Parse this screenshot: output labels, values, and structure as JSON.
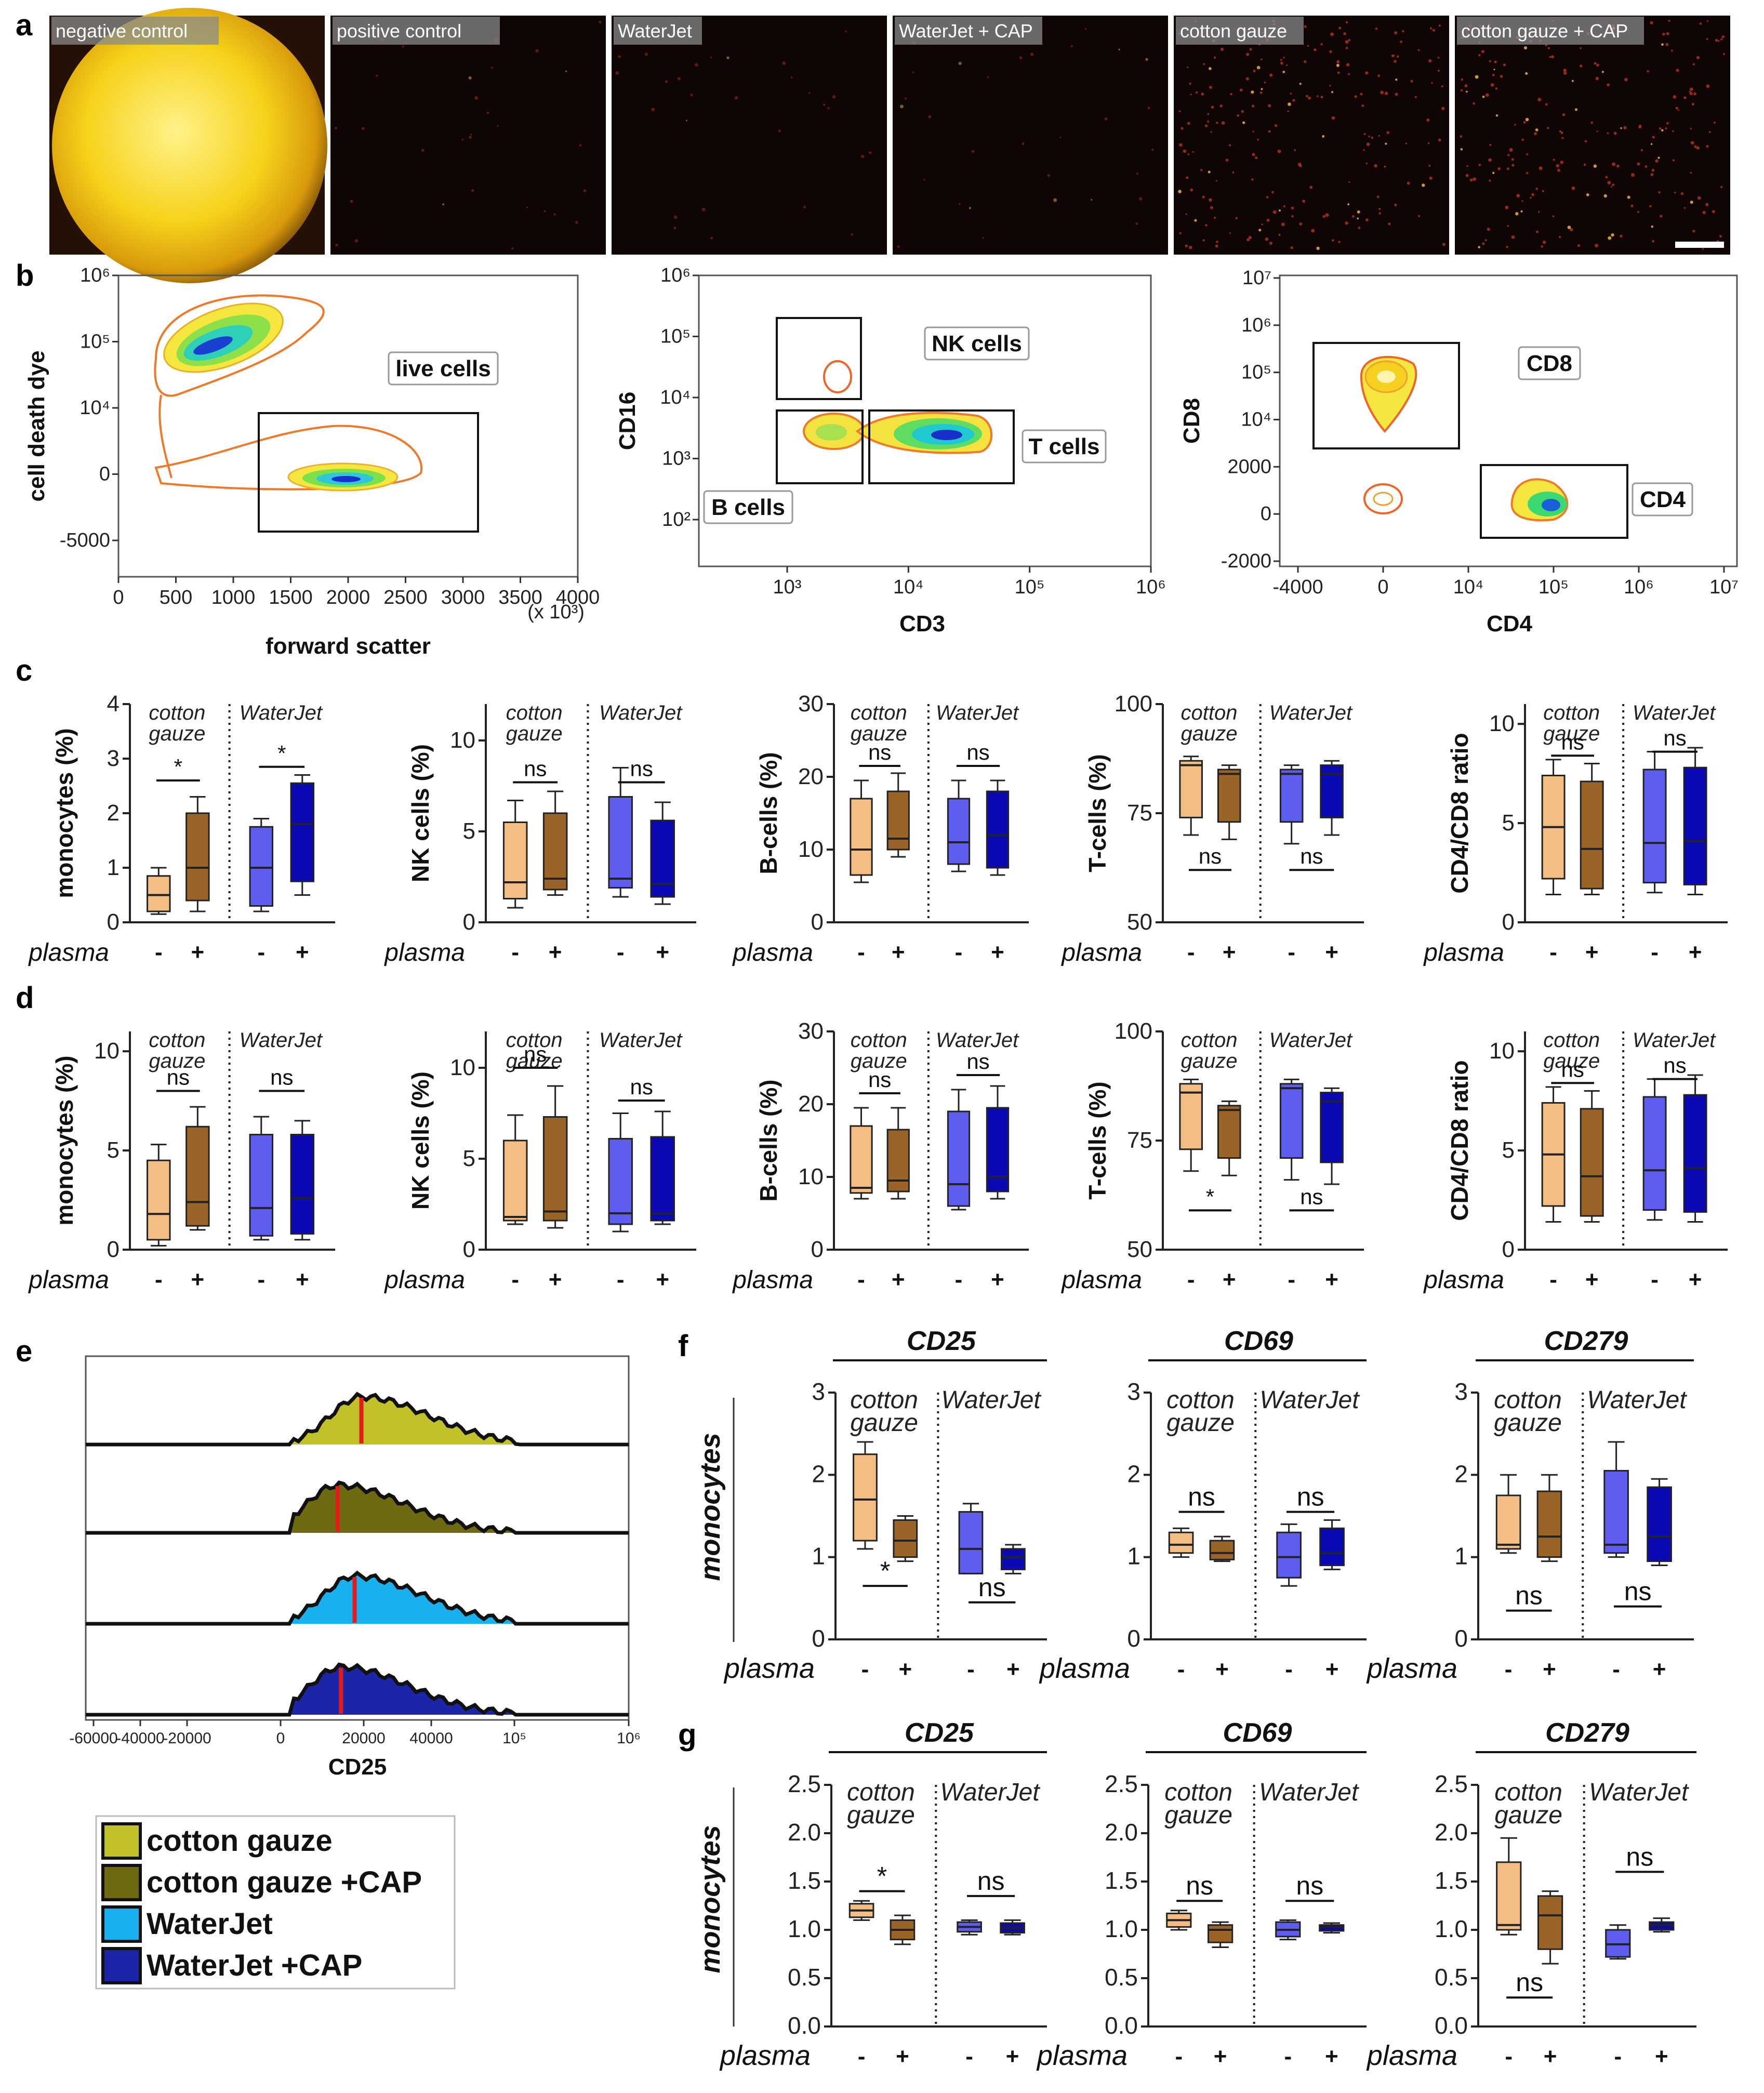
{
  "panel_labels": [
    "a",
    "b",
    "c",
    "d",
    "e",
    "f",
    "g"
  ],
  "colors": {
    "cotton_minus": "#f3bd84",
    "cotton_plus": "#9a6428",
    "waterjet_minus": "#5f5cf0",
    "waterjet_plus": "#0b09b4",
    "hist_cotton": "#c1c12a",
    "hist_cotton_cap": "#6e6a12",
    "hist_waterjet": "#18b0ee",
    "hist_waterjet_cap": "#1c24a8",
    "median_line": "#e41b1b"
  },
  "panel_a": {
    "thumbnails": [
      {
        "label": "negative control",
        "style": "bright"
      },
      {
        "label": "positive control",
        "style": "dark"
      },
      {
        "label": "WaterJet",
        "style": "dark"
      },
      {
        "label": "WaterJet + CAP",
        "style": "dark"
      },
      {
        "label": "cotton gauze",
        "style": "speckled"
      },
      {
        "label": "cotton gauze + CAP",
        "style": "speckled"
      }
    ]
  },
  "panel_b": {
    "plot1": {
      "ylabel": "cell death dye",
      "xlabel": "forward scatter",
      "xunit": "(x 10³)",
      "yticks": [
        "10⁶",
        "10⁵",
        "10⁴",
        "0",
        "-5000"
      ],
      "xticks": [
        "0",
        "500",
        "1000",
        "1500",
        "2000",
        "2500",
        "3000",
        "3500",
        "4000"
      ],
      "gates": [
        "live cells"
      ]
    },
    "plot2": {
      "ylabel": "CD16",
      "xlabel": "CD3",
      "yticks": [
        "10⁶",
        "10⁵",
        "10⁴",
        "10³",
        "10²"
      ],
      "xticks": [
        "10³",
        "10⁴",
        "10⁵",
        "10⁶"
      ],
      "gates": [
        "NK cells",
        "T cells",
        "B cells"
      ]
    },
    "plot3": {
      "ylabel": "CD8",
      "xlabel": "CD4",
      "yticks": [
        "10⁷",
        "10⁶",
        "10⁵",
        "10⁴",
        "2000",
        "0",
        "-2000"
      ],
      "xticks": [
        "-4000",
        "0",
        "10⁴",
        "10⁵",
        "10⁶",
        "10⁷"
      ],
      "gates": [
        "CD8",
        "CD4"
      ]
    }
  },
  "group_labels": {
    "cotton_line1": "cotton",
    "cotton_line2": "gauze",
    "waterjet": "WaterJet"
  },
  "plasma_label": "plasma",
  "plasma_signs": [
    "-",
    "+",
    "-",
    "+"
  ],
  "chart_data": [
    {
      "id": "c1",
      "panel": "c",
      "type": "box",
      "ylabel": "monocytes (%)",
      "ylim": [
        0,
        4
      ],
      "yticks": [
        0,
        1,
        2,
        3,
        4
      ],
      "groups": [
        "cotton gauze",
        "WaterJet"
      ],
      "boxes": [
        {
          "min": 0.15,
          "q1": 0.2,
          "median": 0.5,
          "q3": 0.85,
          "max": 1.0
        },
        {
          "min": 0.2,
          "q1": 0.4,
          "median": 1.0,
          "q3": 2.0,
          "max": 2.3
        },
        {
          "min": 0.2,
          "q1": 0.3,
          "median": 1.0,
          "q3": 1.75,
          "max": 1.9
        },
        {
          "min": 0.5,
          "q1": 0.75,
          "median": 1.8,
          "q3": 2.55,
          "max": 2.7
        }
      ],
      "sig": [
        {
          "text": "*",
          "at": 2.6,
          "pos": "above"
        },
        {
          "text": "*",
          "at": 2.85,
          "pos": "above"
        }
      ]
    },
    {
      "id": "c2",
      "panel": "c",
      "type": "box",
      "ylabel": "NK cells (%)",
      "ylim": [
        0,
        12
      ],
      "yticks": [
        0,
        5,
        10
      ],
      "groups": [
        "cotton gauze",
        "WaterJet"
      ],
      "boxes": [
        {
          "min": 0.8,
          "q1": 1.3,
          "median": 2.2,
          "q3": 5.5,
          "max": 6.7
        },
        {
          "min": 1.5,
          "q1": 1.8,
          "median": 2.4,
          "q3": 6.0,
          "max": 7.2
        },
        {
          "min": 1.4,
          "q1": 1.9,
          "median": 2.4,
          "q3": 6.9,
          "max": 8.5
        },
        {
          "min": 1.0,
          "q1": 1.4,
          "median": 2.1,
          "q3": 5.6,
          "max": 6.6
        }
      ],
      "sig": [
        {
          "text": "ns",
          "at": 7.7,
          "pos": "above"
        },
        {
          "text": "ns",
          "at": 7.7,
          "pos": "above"
        }
      ]
    },
    {
      "id": "c3",
      "panel": "c",
      "type": "box",
      "ylabel": "B-cells (%)",
      "ylim": [
        0,
        30
      ],
      "yticks": [
        0,
        10,
        20,
        30
      ],
      "groups": [
        "cotton gauze",
        "WaterJet"
      ],
      "boxes": [
        {
          "min": 5.5,
          "q1": 6.5,
          "median": 10.0,
          "q3": 17.0,
          "max": 19.5
        },
        {
          "min": 9.0,
          "q1": 10.0,
          "median": 11.5,
          "q3": 18.0,
          "max": 20.5
        },
        {
          "min": 7.0,
          "q1": 8.0,
          "median": 11.0,
          "q3": 17.0,
          "max": 19.5
        },
        {
          "min": 6.5,
          "q1": 7.5,
          "median": 12.0,
          "q3": 18.0,
          "max": 19.5
        }
      ],
      "sig": [
        {
          "text": "ns",
          "at": 21.5,
          "pos": "above"
        },
        {
          "text": "ns",
          "at": 21.5,
          "pos": "above"
        }
      ]
    },
    {
      "id": "c4",
      "panel": "c",
      "type": "box",
      "ylabel": "T-cells (%)",
      "ylim": [
        50,
        100
      ],
      "yticks": [
        50,
        75,
        100
      ],
      "groups": [
        "cotton gauze",
        "WaterJet"
      ],
      "boxes": [
        {
          "min": 70,
          "q1": 74,
          "median": 86,
          "q3": 87,
          "max": 88
        },
        {
          "min": 69,
          "q1": 73,
          "median": 84,
          "q3": 85,
          "max": 86
        },
        {
          "min": 68,
          "q1": 73,
          "median": 84,
          "q3": 85,
          "max": 86
        },
        {
          "min": 70,
          "q1": 74,
          "median": 84,
          "q3": 86,
          "max": 87
        }
      ],
      "sig": [
        {
          "text": "ns",
          "at": 62,
          "pos": "below"
        },
        {
          "text": "ns",
          "at": 62,
          "pos": "below"
        }
      ]
    },
    {
      "id": "c5",
      "panel": "c",
      "type": "box",
      "ylabel": "CD4/CD8 ratio",
      "ylim": [
        0,
        11
      ],
      "yticks": [
        0,
        5,
        10
      ],
      "groups": [
        "cotton gauze",
        "WaterJet"
      ],
      "boxes": [
        {
          "min": 1.4,
          "q1": 2.2,
          "median": 4.8,
          "q3": 7.4,
          "max": 8.2
        },
        {
          "min": 1.4,
          "q1": 1.7,
          "median": 3.7,
          "q3": 7.1,
          "max": 8.0
        },
        {
          "min": 1.5,
          "q1": 2.0,
          "median": 4.0,
          "q3": 7.7,
          "max": 8.6
        },
        {
          "min": 1.4,
          "q1": 1.9,
          "median": 4.1,
          "q3": 7.8,
          "max": 8.8
        }
      ],
      "sig": [
        {
          "text": "ns",
          "at": 8.4,
          "pos": "above"
        },
        {
          "text": "ns",
          "at": 8.6,
          "pos": "above"
        }
      ]
    },
    {
      "id": "d1",
      "panel": "d",
      "type": "box",
      "ylabel": "monocytes (%)",
      "ylim": [
        0,
        11
      ],
      "yticks": [
        0,
        5,
        10
      ],
      "groups": [
        "cotton gauze",
        "WaterJet"
      ],
      "boxes": [
        {
          "min": 0.2,
          "q1": 0.5,
          "median": 1.8,
          "q3": 4.5,
          "max": 5.3
        },
        {
          "min": 1.0,
          "q1": 1.2,
          "median": 2.4,
          "q3": 6.2,
          "max": 7.2
        },
        {
          "min": 0.5,
          "q1": 0.7,
          "median": 2.1,
          "q3": 5.8,
          "max": 6.7
        },
        {
          "min": 0.5,
          "q1": 0.8,
          "median": 2.6,
          "q3": 5.8,
          "max": 6.5
        }
      ],
      "sig": [
        {
          "text": "ns",
          "at": 8.0,
          "pos": "above"
        },
        {
          "text": "ns",
          "at": 8.0,
          "pos": "above"
        }
      ]
    },
    {
      "id": "d2",
      "panel": "d",
      "type": "box",
      "ylabel": "NK cells (%)",
      "ylim": [
        0,
        12
      ],
      "yticks": [
        0,
        5,
        10
      ],
      "groups": [
        "cotton gauze",
        "WaterJet"
      ],
      "boxes": [
        {
          "min": 1.4,
          "q1": 1.6,
          "median": 1.8,
          "q3": 6.0,
          "max": 7.4
        },
        {
          "min": 1.2,
          "q1": 1.6,
          "median": 2.1,
          "q3": 7.3,
          "max": 9.0
        },
        {
          "min": 1.0,
          "q1": 1.4,
          "median": 2.0,
          "q3": 6.1,
          "max": 7.5
        },
        {
          "min": 1.4,
          "q1": 1.6,
          "median": 2.0,
          "q3": 6.2,
          "max": 7.6
        }
      ],
      "sig": [
        {
          "text": "ns",
          "at": 10.0,
          "pos": "above"
        },
        {
          "text": "ns",
          "at": 8.2,
          "pos": "above"
        }
      ]
    },
    {
      "id": "d3",
      "panel": "d",
      "type": "box",
      "ylabel": "B-cells (%)",
      "ylim": [
        0,
        30
      ],
      "yticks": [
        0,
        10,
        20,
        30
      ],
      "groups": [
        "cotton gauze",
        "WaterJet"
      ],
      "boxes": [
        {
          "min": 7.0,
          "q1": 7.8,
          "median": 8.5,
          "q3": 17.0,
          "max": 19.5
        },
        {
          "min": 7.0,
          "q1": 8.0,
          "median": 9.5,
          "q3": 16.5,
          "max": 19.5
        },
        {
          "min": 5.5,
          "q1": 6.0,
          "median": 9.0,
          "q3": 19.0,
          "max": 22.0
        },
        {
          "min": 7.0,
          "q1": 8.0,
          "median": 10.0,
          "q3": 19.5,
          "max": 22.5
        }
      ],
      "sig": [
        {
          "text": "ns",
          "at": 21.5,
          "pos": "above"
        },
        {
          "text": "ns",
          "at": 24.0,
          "pos": "above"
        }
      ]
    },
    {
      "id": "d4",
      "panel": "d",
      "type": "box",
      "ylabel": "T-cells (%)",
      "ylim": [
        50,
        100
      ],
      "yticks": [
        50,
        75,
        100
      ],
      "groups": [
        "cotton gauze",
        "WaterJet"
      ],
      "boxes": [
        {
          "min": 68,
          "q1": 73,
          "median": 86,
          "q3": 88,
          "max": 89
        },
        {
          "min": 67,
          "q1": 71,
          "median": 82,
          "q3": 83,
          "max": 84
        },
        {
          "min": 66,
          "q1": 71,
          "median": 87,
          "q3": 88,
          "max": 89
        },
        {
          "min": 65,
          "q1": 70,
          "median": 84,
          "q3": 86,
          "max": 87
        }
      ],
      "sig": [
        {
          "text": "*",
          "at": 59,
          "pos": "below"
        },
        {
          "text": "ns",
          "at": 59,
          "pos": "below"
        }
      ]
    },
    {
      "id": "d5",
      "panel": "d",
      "type": "box",
      "ylabel": "CD4/CD8 ratio",
      "ylim": [
        0,
        11
      ],
      "yticks": [
        0,
        5,
        10
      ],
      "groups": [
        "cotton gauze",
        "WaterJet"
      ],
      "boxes": [
        {
          "min": 1.4,
          "q1": 2.2,
          "median": 4.8,
          "q3": 7.4,
          "max": 8.2
        },
        {
          "min": 1.4,
          "q1": 1.7,
          "median": 3.7,
          "q3": 7.1,
          "max": 8.0
        },
        {
          "min": 1.5,
          "q1": 2.0,
          "median": 4.0,
          "q3": 7.7,
          "max": 8.6
        },
        {
          "min": 1.4,
          "q1": 1.9,
          "median": 4.1,
          "q3": 7.8,
          "max": 8.8
        }
      ],
      "sig": [
        {
          "text": "ns",
          "at": 8.4,
          "pos": "above"
        },
        {
          "text": "ns",
          "at": 8.6,
          "pos": "above"
        }
      ]
    },
    {
      "id": "f1",
      "panel": "f",
      "type": "box",
      "header": "CD25",
      "ylabel": "monocytes",
      "ylim": [
        0,
        3
      ],
      "yticks": [
        0,
        1,
        2,
        3
      ],
      "groups": [
        "cotton gauze",
        "WaterJet"
      ],
      "boxes": [
        {
          "min": 1.1,
          "q1": 1.2,
          "median": 1.7,
          "q3": 2.25,
          "max": 2.4
        },
        {
          "min": 0.95,
          "q1": 1.0,
          "median": 1.2,
          "q3": 1.45,
          "max": 1.5
        },
        {
          "min": 0.8,
          "q1": 0.8,
          "median": 1.1,
          "q3": 1.55,
          "max": 1.65
        },
        {
          "min": 0.8,
          "q1": 0.85,
          "median": 1.0,
          "q3": 1.1,
          "max": 1.15
        }
      ],
      "sig": [
        {
          "text": "*",
          "at": 0.65,
          "pos": "below"
        },
        {
          "text": "ns",
          "at": 0.45,
          "pos": "below"
        }
      ]
    },
    {
      "id": "f2",
      "panel": "f",
      "type": "box",
      "header": "CD69",
      "ylim": [
        0,
        3
      ],
      "yticks": [
        0,
        1,
        2,
        3
      ],
      "groups": [
        "cotton gauze",
        "WaterJet"
      ],
      "boxes": [
        {
          "min": 1.0,
          "q1": 1.05,
          "median": 1.15,
          "q3": 1.3,
          "max": 1.35
        },
        {
          "min": 0.95,
          "q1": 0.97,
          "median": 1.05,
          "q3": 1.2,
          "max": 1.25
        },
        {
          "min": 0.65,
          "q1": 0.75,
          "median": 1.0,
          "q3": 1.3,
          "max": 1.4
        },
        {
          "min": 0.85,
          "q1": 0.9,
          "median": 1.05,
          "q3": 1.35,
          "max": 1.45
        }
      ],
      "sig": [
        {
          "text": "ns",
          "at": 1.55,
          "pos": "above"
        },
        {
          "text": "ns",
          "at": 1.55,
          "pos": "above"
        }
      ]
    },
    {
      "id": "f3",
      "panel": "f",
      "type": "box",
      "header": "CD279",
      "ylim": [
        0,
        3
      ],
      "yticks": [
        0,
        1,
        2,
        3
      ],
      "groups": [
        "cotton gauze",
        "WaterJet"
      ],
      "boxes": [
        {
          "min": 1.05,
          "q1": 1.1,
          "median": 1.15,
          "q3": 1.75,
          "max": 2.0
        },
        {
          "min": 0.95,
          "q1": 1.0,
          "median": 1.25,
          "q3": 1.8,
          "max": 2.0
        },
        {
          "min": 1.0,
          "q1": 1.05,
          "median": 1.15,
          "q3": 2.05,
          "max": 2.4
        },
        {
          "min": 0.9,
          "q1": 0.95,
          "median": 1.25,
          "q3": 1.85,
          "max": 1.95
        }
      ],
      "sig": [
        {
          "text": "ns",
          "at": 0.35,
          "pos": "below"
        },
        {
          "text": "ns",
          "at": 0.4,
          "pos": "below"
        }
      ]
    },
    {
      "id": "g1",
      "panel": "g",
      "type": "box",
      "header": "CD25",
      "ylabel": "monocytes",
      "ylim": [
        0,
        2.5
      ],
      "yticks": [
        0.0,
        0.5,
        1.0,
        1.5,
        2.0,
        2.5
      ],
      "groups": [
        "cotton gauze",
        "WaterJet"
      ],
      "boxes": [
        {
          "min": 1.1,
          "q1": 1.13,
          "median": 1.2,
          "q3": 1.27,
          "max": 1.3
        },
        {
          "min": 0.85,
          "q1": 0.9,
          "median": 1.0,
          "q3": 1.1,
          "max": 1.15
        },
        {
          "min": 0.95,
          "q1": 0.98,
          "median": 1.03,
          "q3": 1.08,
          "max": 1.1
        },
        {
          "min": 0.95,
          "q1": 0.97,
          "median": 1.02,
          "q3": 1.07,
          "max": 1.1
        }
      ],
      "sig": [
        {
          "text": "*",
          "at": 1.4,
          "pos": "above"
        },
        {
          "text": "ns",
          "at": 1.35,
          "pos": "above"
        }
      ]
    },
    {
      "id": "g2",
      "panel": "g",
      "type": "box",
      "header": "CD69",
      "ylim": [
        0,
        2.5
      ],
      "yticks": [
        0.0,
        0.5,
        1.0,
        1.5,
        2.0,
        2.5
      ],
      "groups": [
        "cotton gauze",
        "WaterJet"
      ],
      "boxes": [
        {
          "min": 1.0,
          "q1": 1.03,
          "median": 1.1,
          "q3": 1.17,
          "max": 1.2
        },
        {
          "min": 0.82,
          "q1": 0.87,
          "median": 1.0,
          "q3": 1.05,
          "max": 1.08
        },
        {
          "min": 0.9,
          "q1": 0.93,
          "median": 1.0,
          "q3": 1.08,
          "max": 1.1
        },
        {
          "min": 0.97,
          "q1": 0.99,
          "median": 1.03,
          "q3": 1.05,
          "max": 1.07
        }
      ],
      "sig": [
        {
          "text": "ns",
          "at": 1.3,
          "pos": "above"
        },
        {
          "text": "ns",
          "at": 1.3,
          "pos": "above"
        }
      ]
    },
    {
      "id": "g3",
      "panel": "g",
      "type": "box",
      "header": "CD279",
      "ylim": [
        0,
        2.5
      ],
      "yticks": [
        0.0,
        0.5,
        1.0,
        1.5,
        2.0,
        2.5
      ],
      "groups": [
        "cotton gauze",
        "WaterJet"
      ],
      "boxes": [
        {
          "min": 0.95,
          "q1": 1.0,
          "median": 1.05,
          "q3": 1.7,
          "max": 1.95
        },
        {
          "min": 0.65,
          "q1": 0.8,
          "median": 1.15,
          "q3": 1.35,
          "max": 1.4
        },
        {
          "min": 0.7,
          "q1": 0.72,
          "median": 0.85,
          "q3": 1.0,
          "max": 1.05
        },
        {
          "min": 0.98,
          "q1": 1.0,
          "median": 1.05,
          "q3": 1.08,
          "max": 1.12
        }
      ],
      "sig": [
        {
          "text": "ns",
          "at": 0.3,
          "pos": "below"
        },
        {
          "text": "ns",
          "at": 1.6,
          "pos": "above"
        }
      ]
    },
    {
      "id": "e",
      "panel": "e",
      "type": "area",
      "xlabel": "CD25",
      "xticks": [
        "-60000",
        "-40000",
        "-20000",
        "0",
        "20000",
        "40000",
        "10⁵",
        "10⁶"
      ],
      "series": [
        {
          "name": "cotton gauze",
          "median": 21000
        },
        {
          "name": "cotton gauze +CAP",
          "median": 14000
        },
        {
          "name": "WaterJet",
          "median": 19000
        },
        {
          "name": "WaterJet +CAP",
          "median": 15000
        }
      ]
    }
  ]
}
